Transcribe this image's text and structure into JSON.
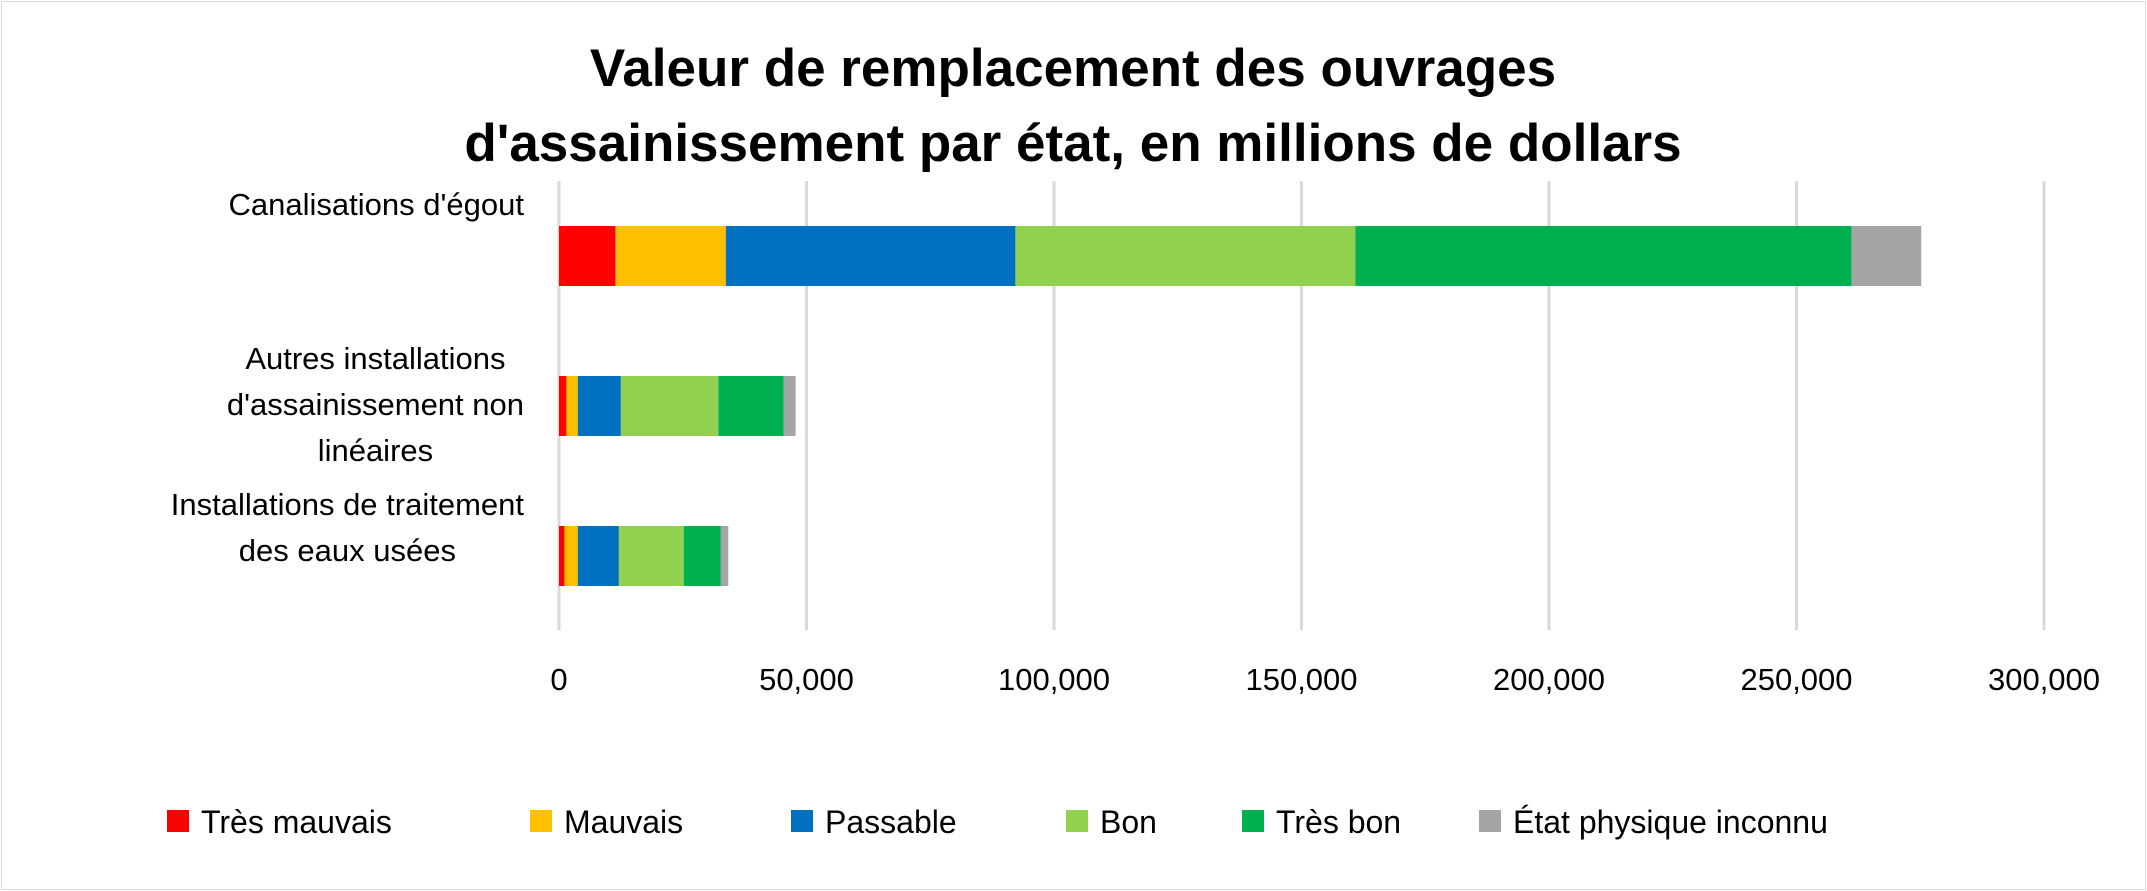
{
  "chart_data": {
    "type": "bar",
    "orientation": "horizontal",
    "stacked": true,
    "title": [
      "Valeur de remplacement des ouvrages",
      "d'assainissement par état, en millions de dollars"
    ],
    "xlabel": "",
    "ylabel": "",
    "xlim": [
      0,
      300000
    ],
    "xticks": [
      0,
      50000,
      100000,
      150000,
      200000,
      250000,
      300000
    ],
    "xtick_labels": [
      "0",
      "50,000",
      "100,000",
      "150,000",
      "200,000",
      "250,000",
      "300,000"
    ],
    "grid": true,
    "legend_position": "bottom",
    "categories": [
      [
        "Canalisations d'égout"
      ],
      [
        "Autres installations",
        "d'assainissement non",
        "linéaires"
      ],
      [
        "Installations de traitement",
        "des eaux usées"
      ]
    ],
    "series": [
      {
        "name": "Très mauvais",
        "color": "#ff0000",
        "values": [
          11400,
          1500,
          1100
        ]
      },
      {
        "name": "Mauvais",
        "color": "#ffc000",
        "values": [
          22300,
          2300,
          2700
        ]
      },
      {
        "name": "Passable",
        "color": "#0070c0",
        "values": [
          58500,
          8700,
          8300
        ]
      },
      {
        "name": "Bon",
        "color": "#92d050",
        "values": [
          68700,
          19700,
          13100
        ]
      },
      {
        "name": "Très bon",
        "color": "#00b050",
        "values": [
          100200,
          13200,
          7500
        ]
      },
      {
        "name": "État physique inconnu",
        "color": "#a5a5a5",
        "values": [
          14100,
          2400,
          1500
        ]
      }
    ]
  }
}
